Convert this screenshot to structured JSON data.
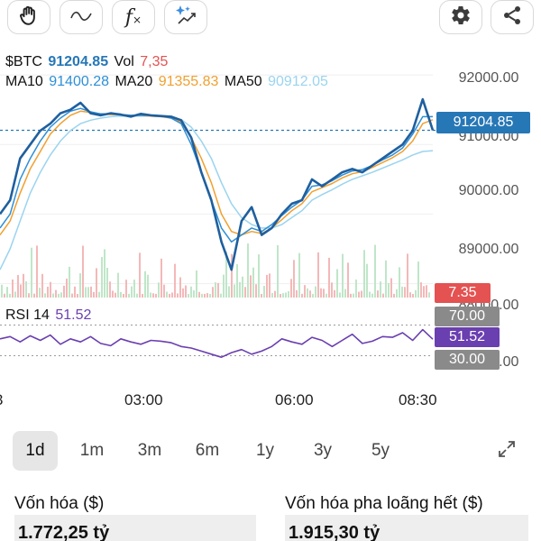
{
  "toolbar": {
    "left_icons": [
      "hand-icon",
      "wave-icon",
      "function-icon",
      "sparkle-chart-icon"
    ],
    "right_icons": [
      "gear-icon",
      "share-icon"
    ]
  },
  "legend": {
    "symbol_label": "$BTC",
    "price": "91204.85",
    "vol_label": "Vol",
    "vol_value": "7,35",
    "ma10_label": "MA10",
    "ma10_value": "91400.28",
    "ma20_label": "MA20",
    "ma20_value": "91355.83",
    "ma50_label": "MA50",
    "ma50_value": "90912.05",
    "rsi_label": "RSI 14",
    "rsi_value": "51.52"
  },
  "colors": {
    "price_line": "#1f5f9e",
    "ma10": "#2e8fd6",
    "ma20": "#f0a030",
    "ma50": "#9ad4ef",
    "volume_green": "#bfe6c8",
    "volume_red": "#f4b8b8",
    "rsi_line": "#6a3fb0",
    "price_badge": "#2677b6",
    "vol_badge": "#e45252",
    "rsi_badge": "#6a3fb0",
    "rsi_level_badge": "#8a8a8a"
  },
  "y_axis": {
    "ticks": [
      "92000.00",
      "91000.00",
      "90000.00",
      "89000.00"
    ],
    "current_price_badge": "91204.85",
    "vol_badge": "7.35",
    "rsi_70": "70.00",
    "rsi_current": "51.52",
    "rsi_30": "30.00",
    "partial_tick_1": "88000.00",
    "partial_tick_2": "87000.00"
  },
  "x_axis": {
    "ticks": [
      "03:00",
      "06:00",
      "08:30"
    ],
    "left_partial": "3"
  },
  "range_selector": {
    "items": [
      "1d",
      "1m",
      "3m",
      "6m",
      "1y",
      "3y",
      "5y"
    ],
    "active": "1d"
  },
  "market_cap": {
    "label": "Vốn hóa ($)",
    "value": "1.772,25 tỷ"
  },
  "fdv": {
    "label": "Vốn hóa pha loãng hết ($)",
    "value": "1.915,30 tỷ"
  },
  "chart_data": {
    "type": "line",
    "price_range": [
      88800,
      92300
    ],
    "current_price": 91204.85,
    "x_ticks": [
      "03:00",
      "06:00",
      "08:30"
    ],
    "series": [
      {
        "name": "$BTC",
        "values": [
          90000,
          90200,
          90800,
          91000,
          91200,
          91300,
          91450,
          91500,
          91600,
          91450,
          91420,
          91450,
          91430,
          91400,
          91440,
          91420,
          91410,
          91400,
          91350,
          91100,
          90600,
          90200,
          89600,
          89200,
          89900,
          90100,
          89700,
          89800,
          90000,
          90150,
          90200,
          90500,
          90400,
          90500,
          90600,
          90650,
          90600,
          90700,
          90800,
          90900,
          91000,
          91200,
          91650,
          91204
        ]
      },
      {
        "name": "MA10",
        "values": [
          89800,
          90000,
          90500,
          90800,
          91050,
          91250,
          91380,
          91480,
          91520,
          91470,
          91440,
          91440,
          91430,
          91420,
          91420,
          91420,
          91410,
          91380,
          91300,
          91000,
          90600,
          90200,
          89800,
          89600,
          89700,
          89800,
          89750,
          89850,
          89980,
          90100,
          90200,
          90400,
          90420,
          90480,
          90560,
          90620,
          90640,
          90700,
          90780,
          90850,
          90950,
          91150,
          91400,
          91400
        ]
      },
      {
        "name": "MA20",
        "values": [
          89700,
          89900,
          90300,
          90650,
          90900,
          91150,
          91300,
          91420,
          91480,
          91460,
          91440,
          91430,
          91430,
          91420,
          91420,
          91410,
          91400,
          91380,
          91320,
          91100,
          90800,
          90450,
          90000,
          89750,
          89700,
          89750,
          89720,
          89800,
          89920,
          90050,
          90150,
          90320,
          90380,
          90440,
          90520,
          90580,
          90610,
          90670,
          90740,
          90810,
          90900,
          91050,
          91300,
          91356
        ]
      },
      {
        "name": "MA50",
        "values": [
          89200,
          89500,
          89900,
          90300,
          90600,
          90850,
          91050,
          91200,
          91300,
          91350,
          91380,
          91400,
          91410,
          91410,
          91410,
          91410,
          91400,
          91390,
          91360,
          91250,
          91050,
          90800,
          90450,
          90150,
          89950,
          89850,
          89800,
          89800,
          89850,
          89950,
          90050,
          90200,
          90280,
          90350,
          90430,
          90500,
          90550,
          90600,
          90660,
          90720,
          90780,
          90850,
          90900,
          90912
        ]
      },
      {
        "name": "RSI 14",
        "values": [
          52,
          55,
          48,
          56,
          50,
          57,
          45,
          52,
          48,
          55,
          46,
          43,
          52,
          48,
          45,
          50,
          49,
          47,
          42,
          40,
          36,
          32,
          28,
          34,
          38,
          32,
          36,
          42,
          52,
          48,
          45,
          54,
          50,
          42,
          50,
          58,
          46,
          49,
          55,
          54,
          60,
          50,
          64,
          51.5
        ]
      }
    ],
    "rsi_levels": [
      70,
      30
    ]
  }
}
